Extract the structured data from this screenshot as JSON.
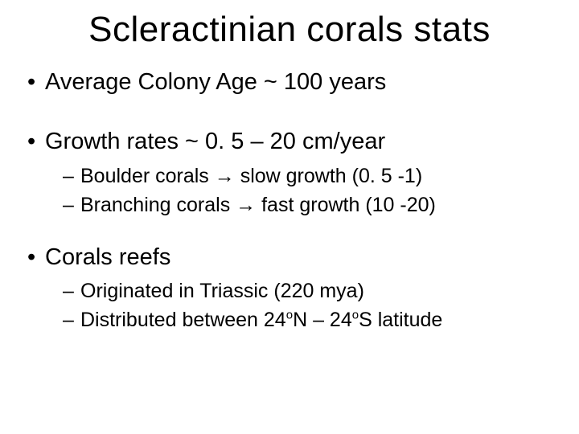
{
  "title": "Scleractinian corals stats",
  "bullets": {
    "b1": "Average Colony Age ~ 100 years",
    "b2": "Growth rates ~ 0. 5 – 20 cm/year",
    "b2_sub1_pre": "Boulder corals ",
    "b2_sub1_post": " slow growth (0. 5 -1)",
    "b2_sub2_pre": "Branching corals ",
    "b2_sub2_post": " fast growth (10 -20)",
    "b3": "Corals reefs",
    "b3_sub1": "Originated in Triassic (220 mya)",
    "b3_sub2_pre": "Distributed between 24",
    "b3_sub2_mid": "N – 24",
    "b3_sub2_post": "S latitude",
    "deg": "o",
    "arrow": "→"
  },
  "style": {
    "background_color": "#ffffff",
    "text_color": "#000000",
    "title_fontsize": 44,
    "l1_fontsize": 29,
    "l2_fontsize": 25,
    "font_family": "Comic Sans MS"
  }
}
